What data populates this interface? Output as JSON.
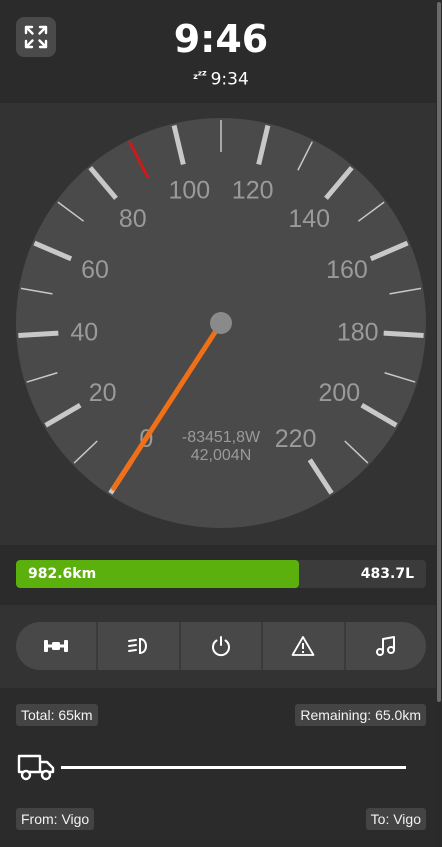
{
  "header": {
    "clock": "9:46",
    "sleep_icon": "zzz-icon",
    "sleep_time": "9:34",
    "fullscreen_icon": "expand-icon"
  },
  "speedometer": {
    "min": 0,
    "max": 220,
    "major_labels": [
      "0",
      "20",
      "40",
      "60",
      "80",
      "100",
      "120",
      "140",
      "160",
      "180",
      "200",
      "220"
    ],
    "speed": 0,
    "speed_limit": 90,
    "coordinates": {
      "longitude": "-83451,8W",
      "latitude": "42,004N"
    },
    "colors": {
      "dial": "#4a4a4a",
      "needle": "#f07018",
      "limit_marker": "#d01818",
      "ticks": "#c8c8c8",
      "labels": "#9a9a9a"
    }
  },
  "fuel": {
    "distance": "982.6km",
    "liters": "483.7L",
    "level": 0.69,
    "color": "#5cb00e"
  },
  "controls": [
    {
      "icon": "differential-lock-icon"
    },
    {
      "icon": "headlights-icon"
    },
    {
      "icon": "power-icon"
    },
    {
      "icon": "hazard-warning-icon"
    },
    {
      "icon": "music-note-icon"
    }
  ],
  "route": {
    "total": "Total: 65km",
    "remaining": "Remaining: 65.0km",
    "from": "From: Vigo",
    "to": "To: Vigo",
    "vehicle_icon": "truck-icon"
  }
}
